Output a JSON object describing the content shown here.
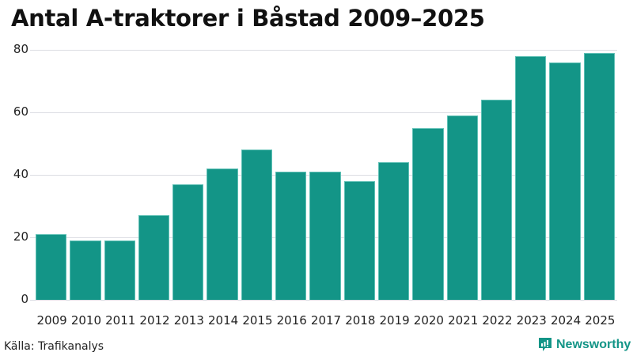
{
  "title": "Antal A-traktorer i Båstad 2009–2025",
  "source": "Källa: Trafikanalys",
  "brand": "Newsworthy",
  "colors": {
    "bar": "#139587",
    "grid": "#dcdde3",
    "brand": "#139587"
  },
  "chart_data": {
    "type": "bar",
    "title": "Antal A-traktorer i Båstad 2009–2025",
    "xlabel": "",
    "ylabel": "",
    "categories": [
      "2009",
      "2010",
      "2011",
      "2012",
      "2013",
      "2014",
      "2015",
      "2016",
      "2017",
      "2018",
      "2019",
      "2020",
      "2021",
      "2022",
      "2023",
      "2024",
      "2025"
    ],
    "values": [
      21,
      19,
      19,
      27,
      37,
      42,
      48,
      41,
      41,
      38,
      44,
      55,
      59,
      64,
      78,
      76,
      79
    ],
    "ylim": [
      0,
      80
    ],
    "yticks": [
      0,
      20,
      40,
      60,
      80
    ],
    "grid": true,
    "legend": null
  }
}
